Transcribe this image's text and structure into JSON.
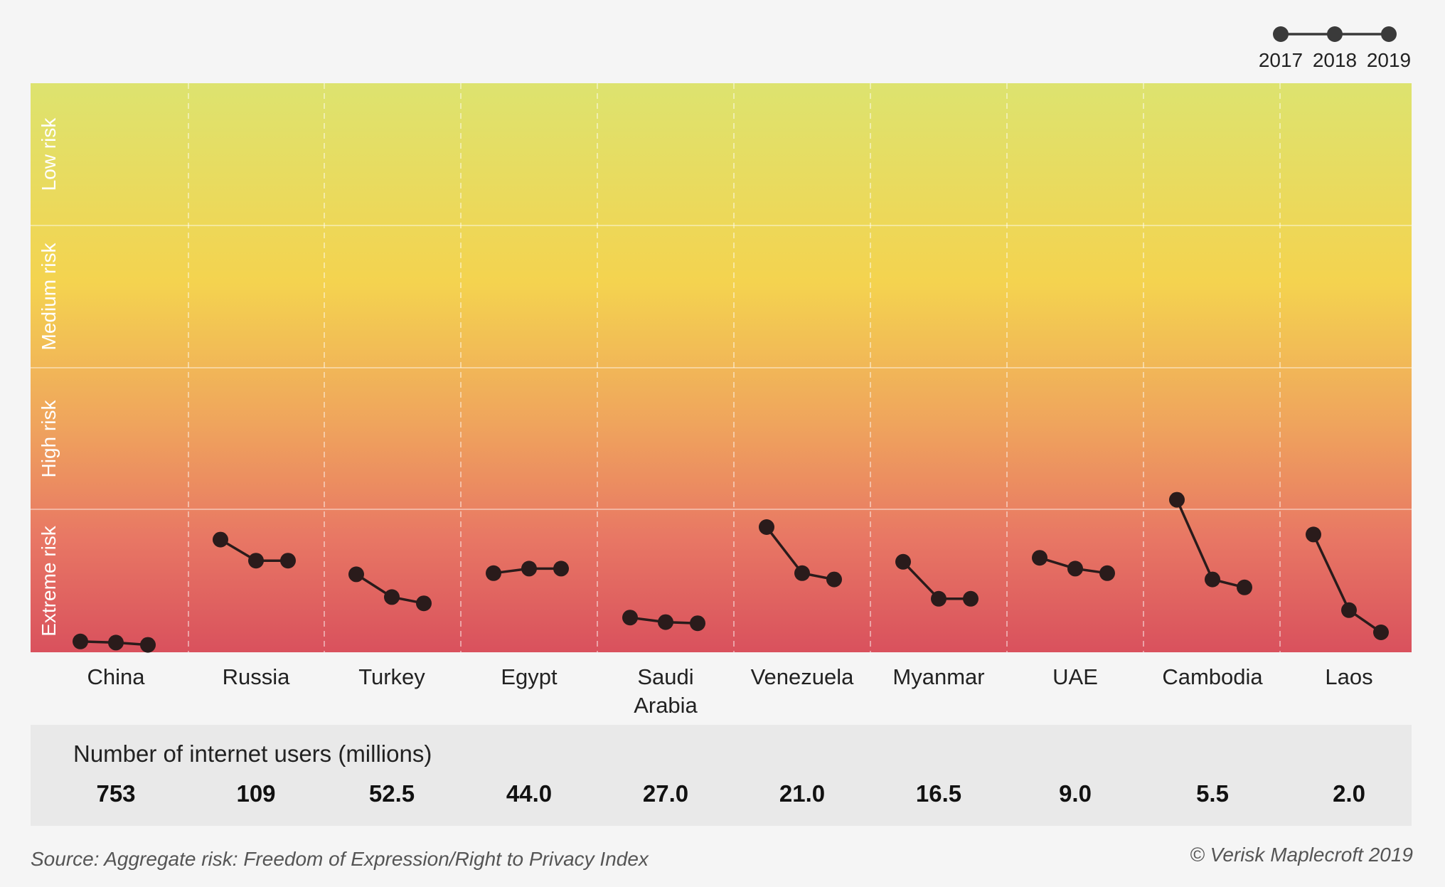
{
  "chart_data": {
    "type": "line",
    "title": "",
    "xlabel": "",
    "ylabel": "",
    "legend": {
      "placement": "top-right",
      "years": [
        "2017",
        "2018",
        "2019"
      ]
    },
    "risk_bands": [
      "Low risk",
      "Medium risk",
      "High risk",
      "Extreme risk"
    ],
    "ylim": [
      0,
      10
    ],
    "grid": true,
    "categories": [
      "China",
      "Russia",
      "Turkey",
      "Egypt",
      "Saudi Arabia",
      "Venezuela",
      "Myanmar",
      "UAE",
      "Cambodia",
      "Laos"
    ],
    "series_by_country": [
      {
        "country": "China",
        "values": [
          0.19,
          0.17,
          0.13
        ]
      },
      {
        "country": "Russia",
        "values": [
          1.98,
          1.61,
          1.61
        ]
      },
      {
        "country": "Turkey",
        "values": [
          1.37,
          0.97,
          0.86
        ]
      },
      {
        "country": "Egypt",
        "values": [
          1.39,
          1.47,
          1.47
        ]
      },
      {
        "country": "Saudi Arabia",
        "values": [
          0.61,
          0.53,
          0.51
        ]
      },
      {
        "country": "Venezuela",
        "values": [
          2.2,
          1.39,
          1.28
        ]
      },
      {
        "country": "Myanmar",
        "values": [
          1.59,
          0.94,
          0.94
        ]
      },
      {
        "country": "UAE",
        "values": [
          1.66,
          1.47,
          1.39
        ]
      },
      {
        "country": "Cambodia",
        "values": [
          2.68,
          1.28,
          1.14
        ]
      },
      {
        "country": "Laos",
        "values": [
          2.07,
          0.74,
          0.35
        ]
      }
    ]
  },
  "users": {
    "title": "Number of internet users (millions)",
    "values": [
      "753",
      "109",
      "52.5",
      "44.0",
      "27.0",
      "21.0",
      "16.5",
      "9.0",
      "5.5",
      "2.0"
    ]
  },
  "footer": {
    "source": "Source: Aggregate risk: Freedom of Expression/Right to Privacy Index",
    "copyright": "© Verisk Maplecroft 2019"
  },
  "colors": {
    "gradient": [
      "#dde36f",
      "#f4d34f",
      "#efa45d",
      "#e87764",
      "#d9515d"
    ],
    "marker": "#2a1b1b",
    "background": "#f5f5f5"
  }
}
